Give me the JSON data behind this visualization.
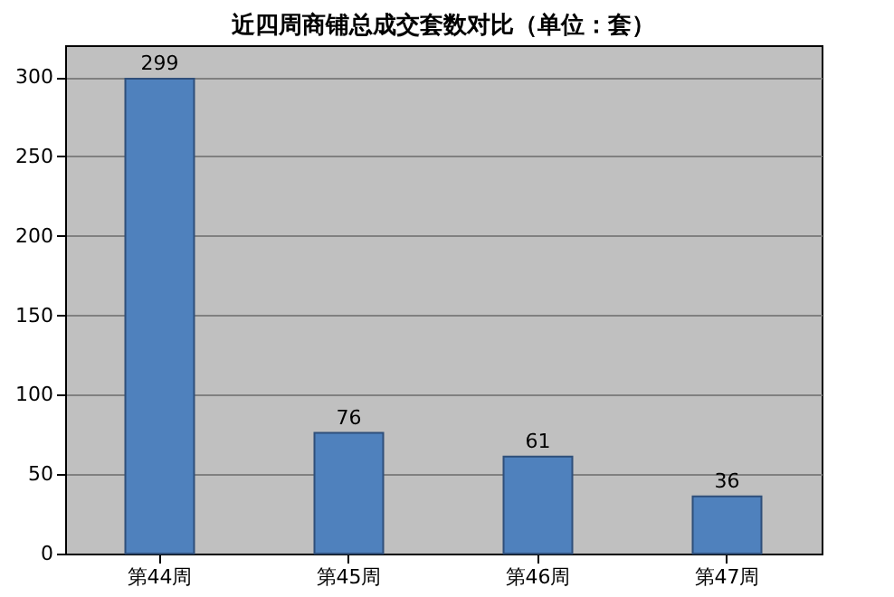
{
  "chart_data": {
    "type": "bar",
    "title": "近四周商铺总成交套数对比（单位：套）",
    "categories": [
      "第44周",
      "第45周",
      "第46周",
      "第47周"
    ],
    "values": [
      299,
      76,
      61,
      36
    ],
    "color": "#4f81bd",
    "ylim": [
      0,
      320
    ],
    "yticks": [
      0,
      50,
      100,
      150,
      200,
      250,
      300
    ],
    "grid": "y",
    "data_labels": true
  }
}
